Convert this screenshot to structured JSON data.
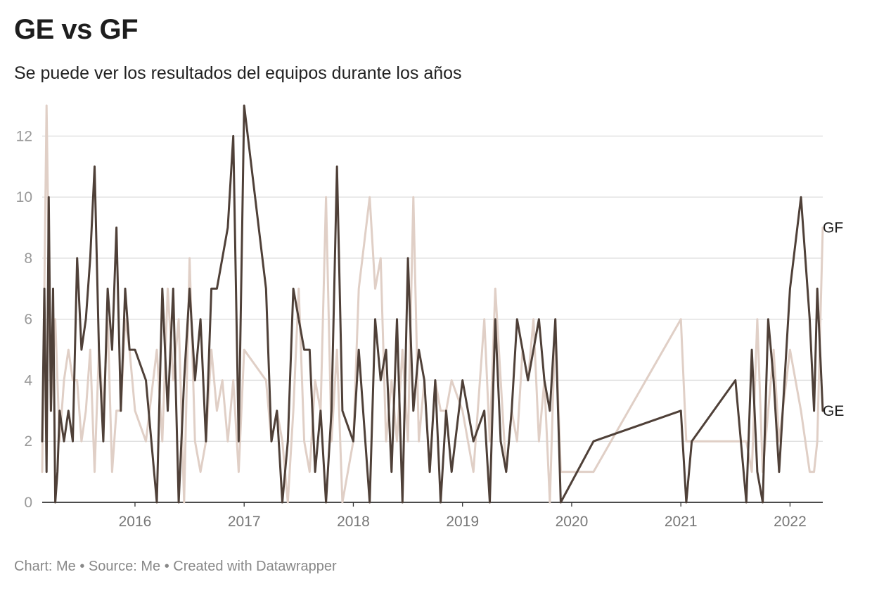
{
  "header": {
    "title": "GE vs GF",
    "subtitle": "Se puede ver los resultados del equipos durante los años"
  },
  "footer": {
    "credit": "Chart: Me • Source: Me • Created with Datawrapper"
  },
  "chart_data": {
    "type": "line",
    "xlabel": "",
    "ylabel": "",
    "xlim": [
      2015.15,
      2022.3
    ],
    "ylim": [
      0,
      13
    ],
    "x_ticks": [
      {
        "value": 2016,
        "label": "2016"
      },
      {
        "value": 2017,
        "label": "2017"
      },
      {
        "value": 2018,
        "label": "2018"
      },
      {
        "value": 2019,
        "label": "2019"
      },
      {
        "value": 2020,
        "label": "2020"
      },
      {
        "value": 2021,
        "label": "2021"
      },
      {
        "value": 2022,
        "label": "2022"
      }
    ],
    "y_ticks": [
      0,
      2,
      4,
      6,
      8,
      10,
      12
    ],
    "grid": true,
    "colors": {
      "GE": "#4f4038",
      "GF": "#e0cfc6",
      "grid": "#dddddd",
      "axis": "#333333"
    },
    "series": [
      {
        "name": "GF",
        "color": "#e0cfc6",
        "x": [
          2015.15,
          2015.19,
          2015.23,
          2015.27,
          2015.31,
          2015.35,
          2015.39,
          2015.43,
          2015.47,
          2015.51,
          2015.55,
          2015.59,
          2015.63,
          2015.67,
          2015.71,
          2015.75,
          2015.79,
          2015.83,
          2015.87,
          2015.91,
          2015.95,
          2016.0,
          2016.1,
          2016.2,
          2016.25,
          2016.3,
          2016.35,
          2016.4,
          2016.45,
          2016.5,
          2016.55,
          2016.6,
          2016.65,
          2016.7,
          2016.75,
          2016.8,
          2016.85,
          2016.9,
          2016.95,
          2017.0,
          2017.2,
          2017.25,
          2017.3,
          2017.35,
          2017.4,
          2017.45,
          2017.5,
          2017.55,
          2017.6,
          2017.65,
          2017.7,
          2017.75,
          2017.8,
          2017.85,
          2017.9,
          2018.0,
          2018.05,
          2018.15,
          2018.2,
          2018.25,
          2018.3,
          2018.35,
          2018.4,
          2018.45,
          2018.5,
          2018.55,
          2018.6,
          2018.65,
          2018.7,
          2018.75,
          2018.8,
          2018.85,
          2018.9,
          2019.0,
          2019.1,
          2019.2,
          2019.25,
          2019.3,
          2019.35,
          2019.4,
          2019.45,
          2019.5,
          2019.55,
          2019.6,
          2019.65,
          2019.7,
          2019.75,
          2019.8,
          2019.85,
          2019.9,
          2020.2,
          2021.0,
          2021.05,
          2021.1,
          2021.5,
          2021.6,
          2021.65,
          2021.7,
          2021.75,
          2021.8,
          2021.85,
          2021.9,
          2022.0,
          2022.1,
          2022.18,
          2022.22,
          2022.25,
          2022.3
        ],
        "y": [
          1,
          13,
          3,
          6,
          2,
          4,
          5,
          4,
          4,
          2,
          3,
          5,
          1,
          5,
          3,
          6,
          1,
          3,
          3,
          6,
          5,
          3,
          2,
          5,
          2,
          7,
          4,
          6,
          0,
          8,
          2,
          1,
          2,
          5,
          3,
          4,
          2,
          4,
          1,
          5,
          4,
          2,
          3,
          2,
          0,
          3,
          7,
          2,
          1,
          4,
          3,
          10,
          2,
          5,
          0,
          2,
          7,
          10,
          7,
          8,
          2,
          4,
          2,
          5,
          2,
          10,
          2,
          4,
          1,
          4,
          3,
          3,
          4,
          3,
          1,
          6,
          2,
          7,
          4,
          1,
          3,
          2,
          5,
          4,
          6,
          2,
          4,
          0,
          6,
          1,
          1,
          6,
          2,
          2,
          2,
          2,
          1,
          6,
          1,
          3,
          5,
          2,
          5,
          3,
          1,
          1,
          2,
          9
        ]
      },
      {
        "name": "GE",
        "color": "#4f4038",
        "x": [
          2015.15,
          2015.17,
          2015.19,
          2015.21,
          2015.23,
          2015.25,
          2015.27,
          2015.29,
          2015.31,
          2015.35,
          2015.39,
          2015.43,
          2015.47,
          2015.51,
          2015.55,
          2015.59,
          2015.63,
          2015.67,
          2015.71,
          2015.75,
          2015.79,
          2015.83,
          2015.87,
          2015.91,
          2015.95,
          2016.0,
          2016.1,
          2016.2,
          2016.25,
          2016.3,
          2016.35,
          2016.4,
          2016.45,
          2016.5,
          2016.55,
          2016.6,
          2016.65,
          2016.7,
          2016.75,
          2016.8,
          2016.85,
          2016.9,
          2016.95,
          2017.0,
          2017.2,
          2017.25,
          2017.3,
          2017.35,
          2017.4,
          2017.45,
          2017.5,
          2017.55,
          2017.6,
          2017.65,
          2017.7,
          2017.75,
          2017.8,
          2017.85,
          2017.9,
          2018.0,
          2018.05,
          2018.15,
          2018.2,
          2018.25,
          2018.3,
          2018.35,
          2018.4,
          2018.45,
          2018.5,
          2018.55,
          2018.6,
          2018.65,
          2018.7,
          2018.75,
          2018.8,
          2018.85,
          2018.9,
          2019.0,
          2019.1,
          2019.2,
          2019.25,
          2019.3,
          2019.35,
          2019.4,
          2019.45,
          2019.5,
          2019.55,
          2019.6,
          2019.65,
          2019.7,
          2019.75,
          2019.8,
          2019.85,
          2019.9,
          2020.2,
          2021.0,
          2021.05,
          2021.1,
          2021.5,
          2021.6,
          2021.65,
          2021.7,
          2021.75,
          2021.8,
          2021.85,
          2021.9,
          2022.0,
          2022.1,
          2022.18,
          2022.22,
          2022.25,
          2022.3
        ],
        "y": [
          2,
          7,
          1,
          10,
          3,
          7,
          0,
          1,
          3,
          2,
          3,
          2,
          8,
          5,
          6,
          8,
          11,
          5,
          2,
          7,
          5,
          9,
          3,
          7,
          5,
          5,
          4,
          0,
          7,
          3,
          7,
          0,
          4,
          7,
          4,
          6,
          2,
          7,
          7,
          8,
          9,
          12,
          2,
          13,
          7,
          2,
          3,
          0,
          2,
          7,
          6,
          5,
          5,
          1,
          3,
          0,
          3,
          11,
          3,
          2,
          5,
          0,
          6,
          4,
          5,
          1,
          6,
          0,
          8,
          3,
          5,
          4,
          1,
          4,
          0,
          3,
          1,
          4,
          2,
          3,
          0,
          6,
          2,
          1,
          3,
          6,
          5,
          4,
          5,
          6,
          4,
          3,
          6,
          0,
          2,
          3,
          0,
          2,
          4,
          0,
          5,
          1,
          0,
          6,
          4,
          1,
          7,
          10,
          6,
          3,
          7,
          3
        ]
      }
    ]
  }
}
